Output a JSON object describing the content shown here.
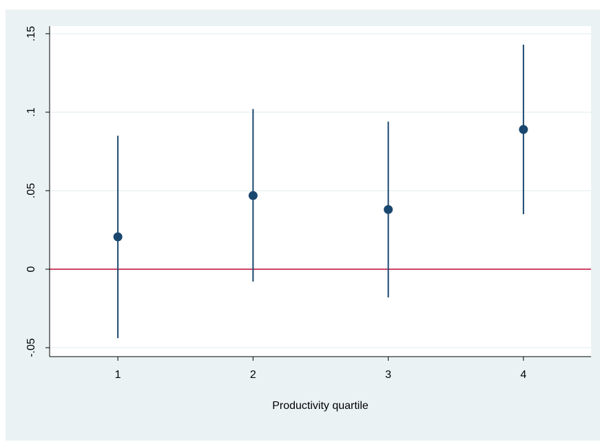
{
  "chart_data": {
    "type": "errorbar",
    "x_label": "Productivity quartile",
    "x": [
      1,
      2,
      3,
      4
    ],
    "values": [
      0.0206,
      0.0469,
      0.038,
      0.089
    ],
    "lower": [
      -0.0439,
      -0.0079,
      -0.018,
      0.035
    ],
    "upper": [
      0.085,
      0.102,
      0.094,
      0.143
    ],
    "color": "#1a476f",
    "xlim": [
      0.495,
      4.5
    ],
    "xticks": [
      1,
      2,
      3,
      4
    ],
    "ylim": [
      -0.0557,
      0.1548
    ],
    "yticks": [
      {
        "value": -0.05,
        "label": "-.05"
      },
      0,
      {
        "value": 0.05,
        "label": ".05"
      },
      {
        "value": 0.1,
        "label": ".1"
      },
      {
        "value": 0.15,
        "label": ".15"
      }
    ],
    "grid": true,
    "reference_line": {
      "y": 0,
      "color": "#c10534"
    }
  }
}
